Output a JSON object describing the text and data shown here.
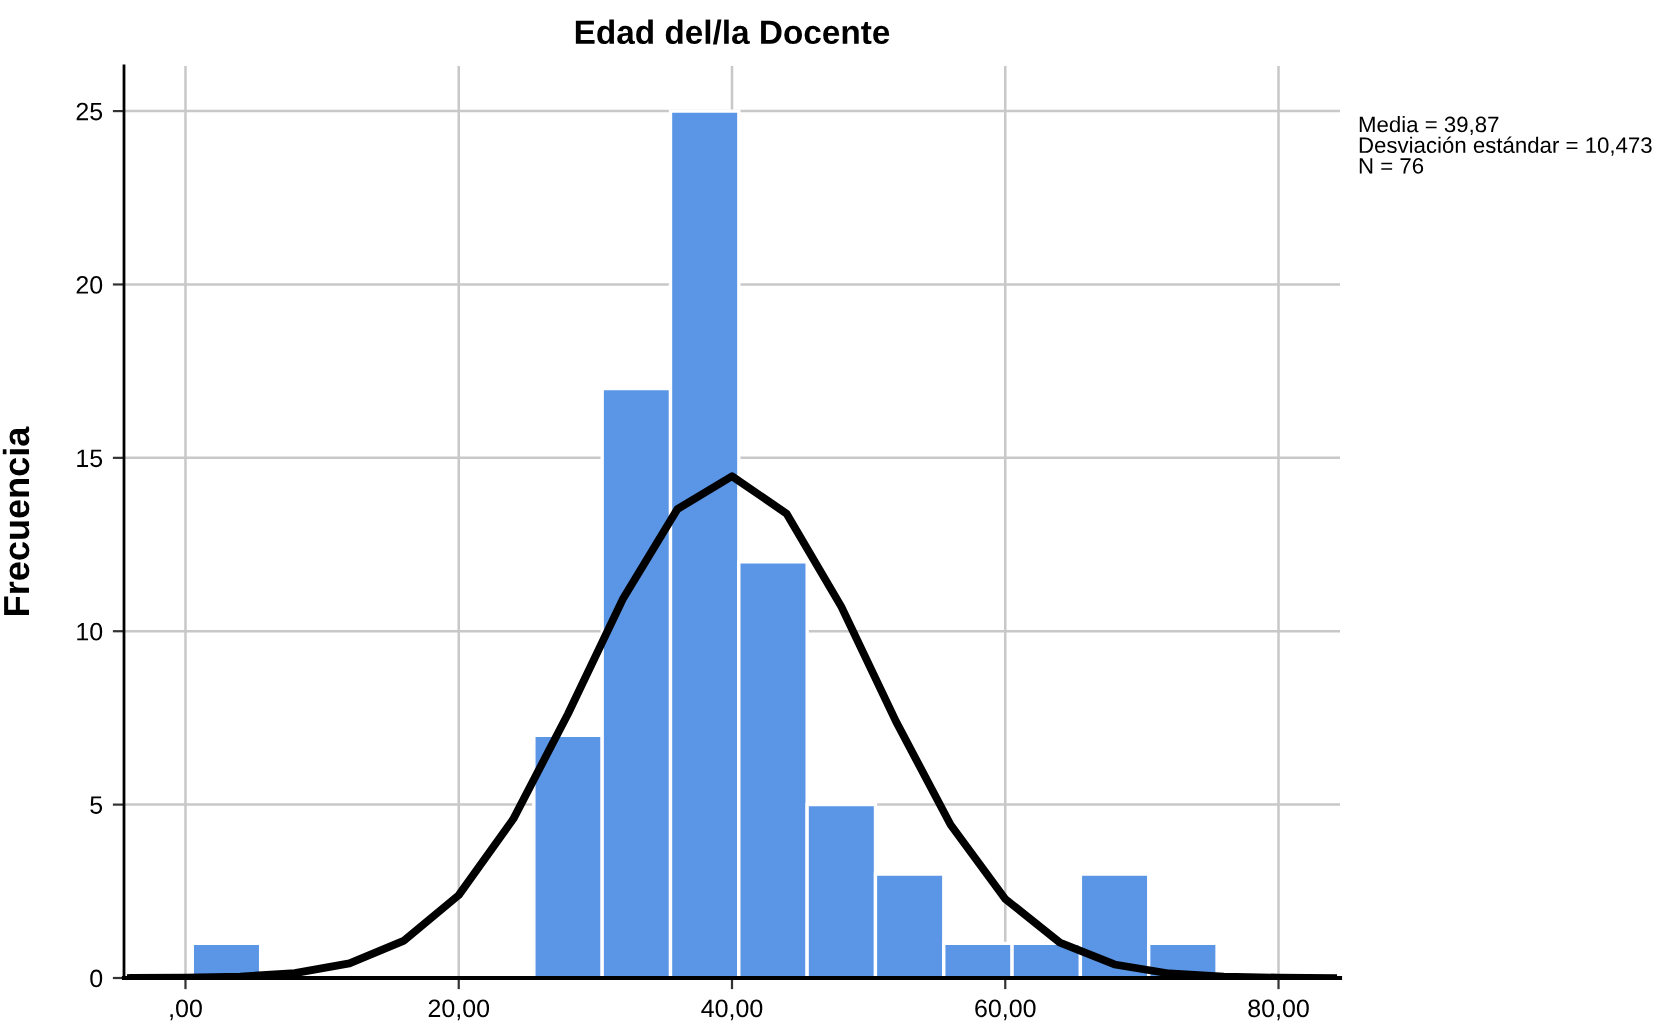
{
  "chart_data": {
    "type": "histogram",
    "title": "Edad del/la Docente",
    "ylabel": "Frecuencia",
    "bins": [
      0.5,
      5.5,
      10.5,
      15.5,
      20.5,
      25.5,
      30.5,
      35.5,
      40.5,
      45.5,
      50.5,
      55.5,
      60.5,
      65.5,
      70.5,
      75.5
    ],
    "values": [
      1,
      0,
      0,
      0,
      0,
      7,
      17,
      25,
      12,
      5,
      3,
      1,
      1,
      3,
      1
    ],
    "color": "#5b96e6",
    "series": [
      {
        "type": "line",
        "color": "#000000",
        "x": [
          -4,
          0,
          4,
          8,
          12,
          16,
          20,
          24,
          28,
          32,
          36,
          40,
          44,
          48,
          52,
          56,
          60,
          64,
          68,
          72,
          76,
          80,
          84
        ],
        "values": [
          0.0,
          0.01,
          0.04,
          0.14,
          0.42,
          1.08,
          2.39,
          4.59,
          7.62,
          10.92,
          13.52,
          14.47,
          13.39,
          10.71,
          7.4,
          4.42,
          2.28,
          1.02,
          0.39,
          0.13,
          0.04,
          0.01,
          0.0
        ]
      }
    ],
    "xlim": [
      -4.5,
      84.5
    ],
    "ylim": [
      0,
      26.3
    ],
    "xticks": [
      {
        "value": 0,
        "label": ",00"
      },
      {
        "value": 20,
        "label": "20,00"
      },
      {
        "value": 40,
        "label": "40,00"
      },
      {
        "value": 60,
        "label": "60,00"
      },
      {
        "value": 80,
        "label": "80,00"
      }
    ],
    "yticks": [
      0,
      5,
      10,
      15,
      20,
      25
    ],
    "grid": true,
    "annotations": [
      "Media = 39,87\nDesviación estándar = 10,473\nN = 76"
    ]
  }
}
